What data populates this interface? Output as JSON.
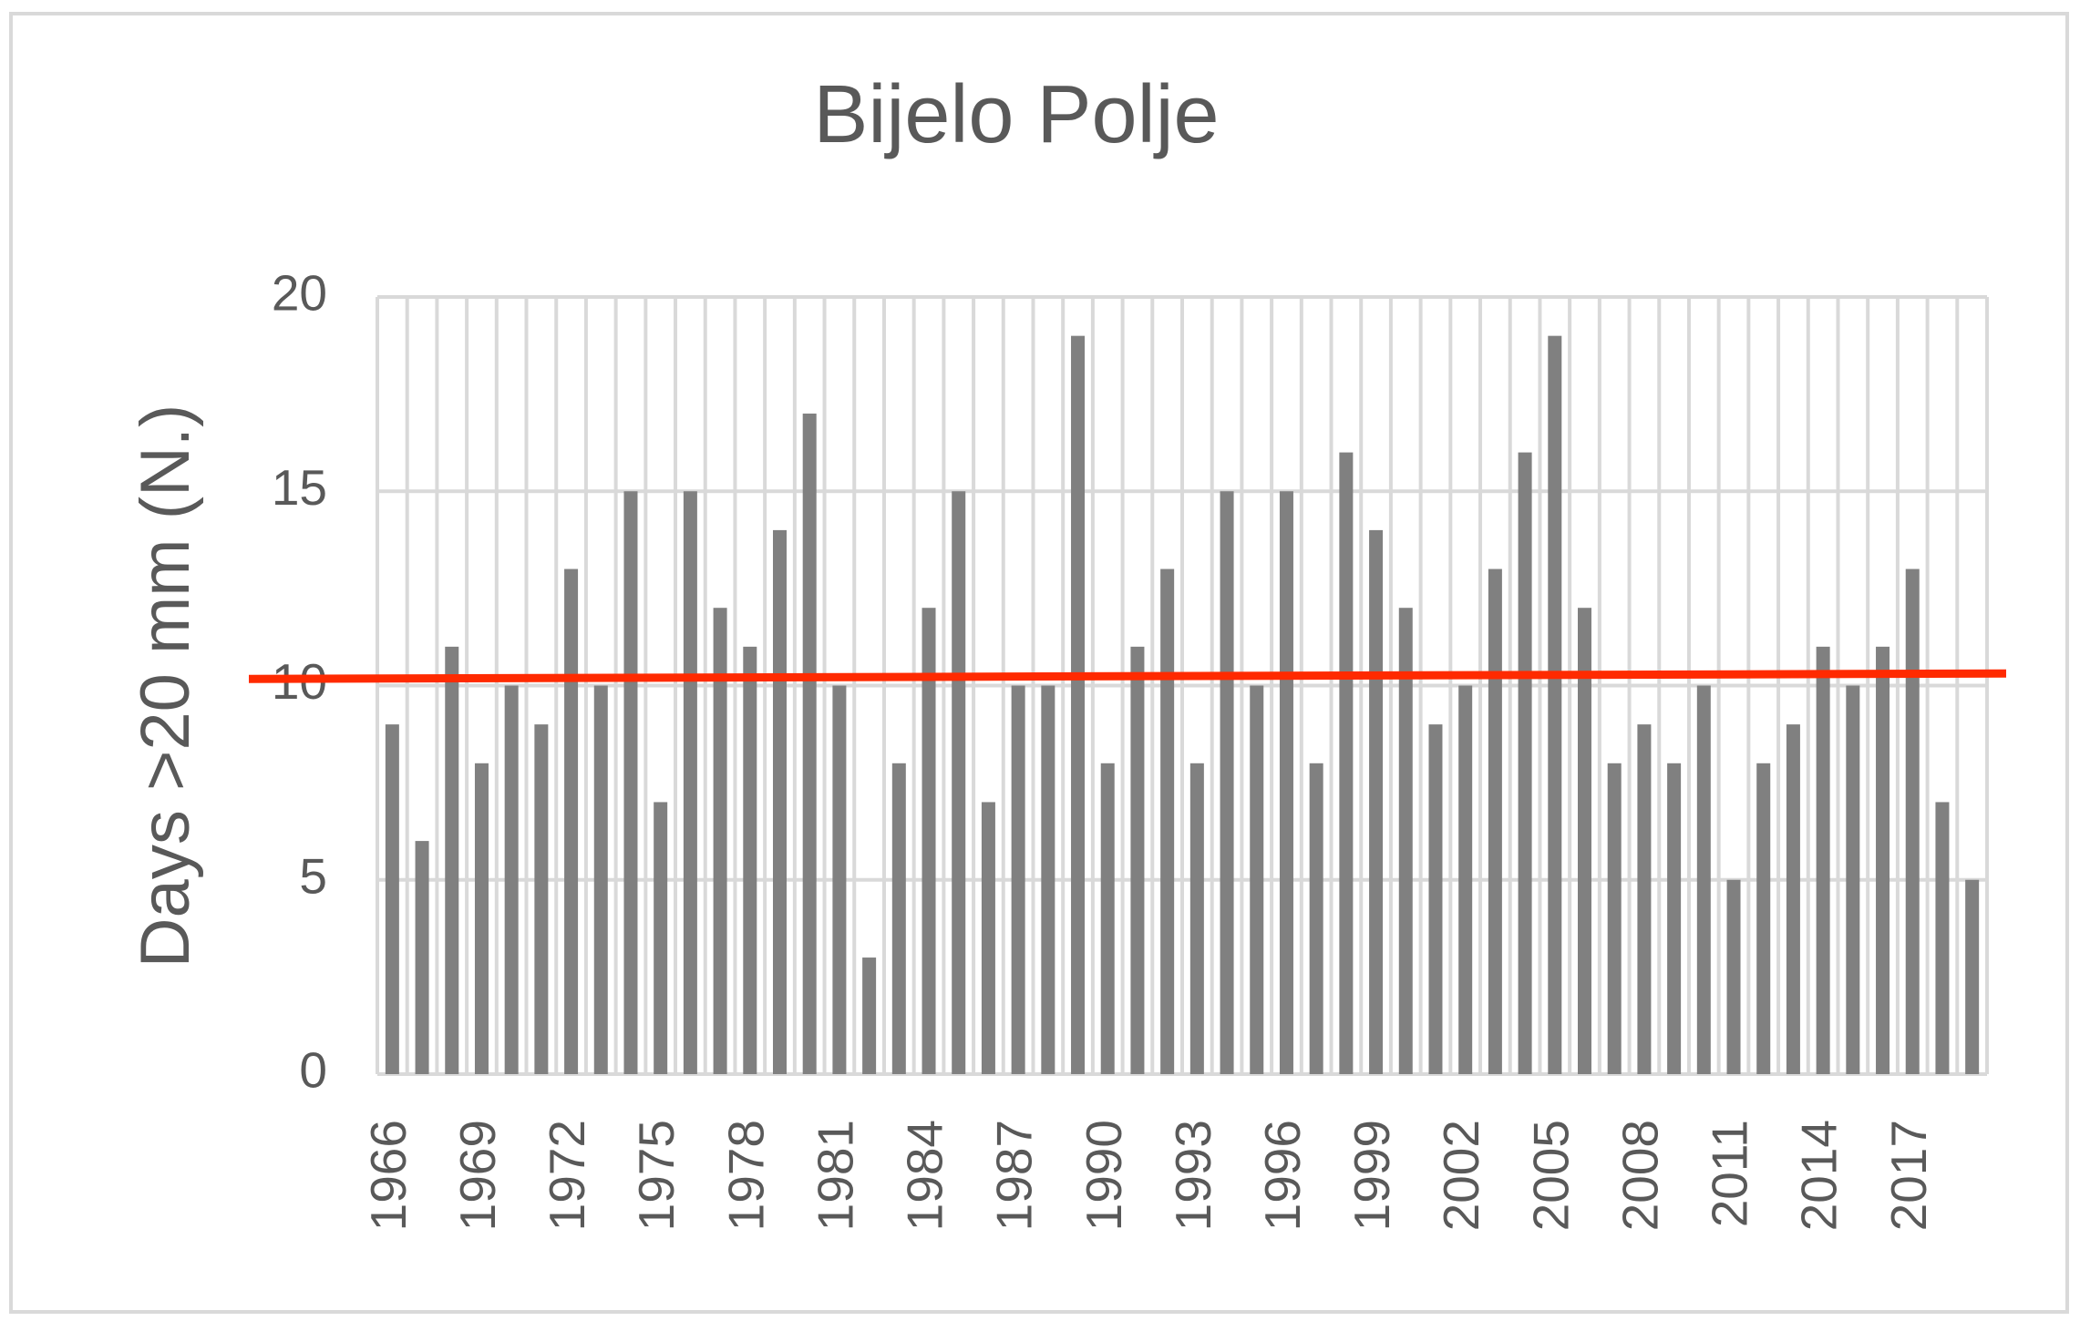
{
  "chart_data": {
    "type": "bar",
    "title": "Bijelo Polje",
    "y_label": "Days >20 mm (N.)",
    "categories": [
      "1966",
      null,
      null,
      "1969",
      null,
      null,
      "1972",
      null,
      null,
      "1975",
      null,
      null,
      "1978",
      null,
      null,
      "1981",
      null,
      null,
      "1984",
      null,
      null,
      "1987",
      null,
      null,
      "1990",
      null,
      null,
      "1993",
      null,
      null,
      "1996",
      null,
      null,
      "1999",
      null,
      null,
      "2002",
      null,
      null,
      "2005",
      null,
      null,
      "2008",
      null,
      null,
      "2011",
      null,
      null,
      "2014",
      null,
      null,
      "2017",
      null,
      null
    ],
    "values": [
      9,
      6,
      11,
      8,
      10,
      9,
      13,
      10,
      15,
      7,
      15,
      12,
      11,
      14,
      17,
      10,
      3,
      8,
      12,
      15,
      7,
      10,
      10,
      19,
      8,
      11,
      13,
      8,
      15,
      10,
      15,
      8,
      16,
      14,
      12,
      9,
      10,
      13,
      16,
      19,
      12,
      8,
      9,
      8,
      10,
      5,
      8,
      9,
      11,
      10,
      11,
      13,
      7,
      5
    ],
    "color": "#808080",
    "trend": {
      "color": "#ff2a00",
      "values": [
        10.17,
        10.31
      ]
    },
    "ylim": [
      0,
      20
    ],
    "yticks": [
      0,
      5,
      10,
      15,
      20
    ],
    "grid": true
  }
}
